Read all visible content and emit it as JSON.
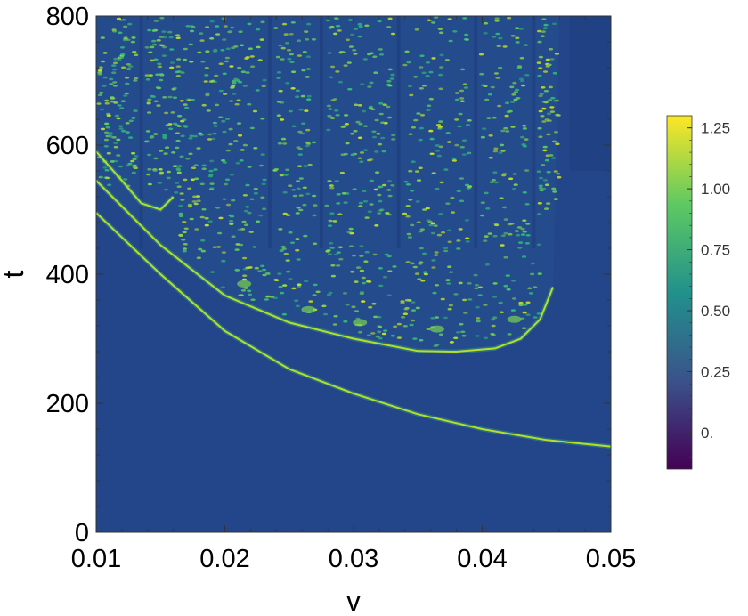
{
  "chart_data": {
    "type": "heatmap",
    "xlabel": "v",
    "ylabel": "t",
    "xlim": [
      0.01,
      0.05
    ],
    "ylim": [
      0,
      800
    ],
    "x_ticks": [
      {
        "value": 0.01,
        "label": "0.01"
      },
      {
        "value": 0.02,
        "label": "0.02"
      },
      {
        "value": 0.03,
        "label": "0.03"
      },
      {
        "value": 0.04,
        "label": "0.04"
      },
      {
        "value": 0.05,
        "label": "0.05"
      }
    ],
    "y_ticks": [
      {
        "value": 0,
        "label": "0"
      },
      {
        "value": 200,
        "label": "200"
      },
      {
        "value": 400,
        "label": "400"
      },
      {
        "value": 600,
        "label": "600"
      },
      {
        "value": 800,
        "label": "800"
      }
    ],
    "colorbar": {
      "range": [
        -0.15,
        1.3
      ],
      "ticks": [
        {
          "value": 0.0,
          "label": "0."
        },
        {
          "value": 0.25,
          "label": "0.25"
        },
        {
          "value": 0.5,
          "label": "0.50"
        },
        {
          "value": 0.75,
          "label": "0.75"
        },
        {
          "value": 1.0,
          "label": "1.00"
        },
        {
          "value": 1.25,
          "label": "1.25"
        }
      ],
      "colormap": [
        "#440154",
        "#3b528b",
        "#21918c",
        "#5ec962",
        "#fde725"
      ]
    },
    "features": {
      "background_value": 0.0,
      "first_breakup_curve": [
        {
          "v": 0.01,
          "t": 495
        },
        {
          "v": 0.015,
          "t": 400
        },
        {
          "v": 0.02,
          "t": 312
        },
        {
          "v": 0.025,
          "t": 253
        },
        {
          "v": 0.03,
          "t": 215
        },
        {
          "v": 0.035,
          "t": 183
        },
        {
          "v": 0.04,
          "t": 160
        },
        {
          "v": 0.045,
          "t": 143
        },
        {
          "v": 0.05,
          "t": 133
        }
      ],
      "second_breakup_curve": [
        {
          "v": 0.01,
          "t": 545
        },
        {
          "v": 0.015,
          "t": 445
        },
        {
          "v": 0.02,
          "t": 367
        },
        {
          "v": 0.025,
          "t": 325
        },
        {
          "v": 0.03,
          "t": 300
        },
        {
          "v": 0.035,
          "t": 281
        },
        {
          "v": 0.038,
          "t": 280
        },
        {
          "v": 0.041,
          "t": 285
        },
        {
          "v": 0.043,
          "t": 300
        },
        {
          "v": 0.0445,
          "t": 330
        },
        {
          "v": 0.0455,
          "t": 380
        }
      ],
      "third_breakup_curve": [
        {
          "v": 0.01,
          "t": 590
        },
        {
          "v": 0.012,
          "t": 545
        },
        {
          "v": 0.0135,
          "t": 510
        },
        {
          "v": 0.015,
          "t": 500
        },
        {
          "v": 0.016,
          "t": 520
        }
      ],
      "turbulent_region_v_max": 0.046,
      "lobes": [
        {
          "v": 0.0215,
          "t_bottom": 385
        },
        {
          "v": 0.0265,
          "t_bottom": 345
        },
        {
          "v": 0.0305,
          "t_bottom": 325
        },
        {
          "v": 0.0365,
          "t_bottom": 315
        },
        {
          "v": 0.0425,
          "t_bottom": 330
        }
      ],
      "dark_streaks_v": [
        0.0235,
        0.0135,
        0.0275,
        0.0335,
        0.0395,
        0.044
      ]
    }
  }
}
